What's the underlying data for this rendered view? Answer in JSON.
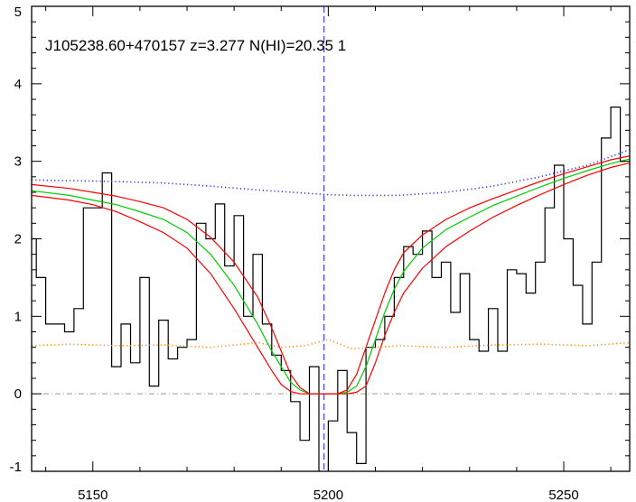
{
  "chart_data": {
    "type": "line",
    "title": "J105238.60+470157 z=3.277 N(HI)=20.35 1",
    "xlabel": "",
    "ylabel": "",
    "xlim": [
      5137,
      5264
    ],
    "ylim": [
      -1,
      5
    ],
    "x_ticks": [
      5150,
      5200,
      5250
    ],
    "x_tick_labels": [
      "5150",
      "5200",
      "5250"
    ],
    "y_ticks": [
      -1,
      0,
      1,
      2,
      3,
      4,
      5
    ],
    "y_tick_labels": [
      "-1",
      "0",
      "1",
      "2",
      "3",
      "4",
      "5"
    ],
    "grid": false,
    "legend": "none",
    "reference_x": 5199.1,
    "reference_y": 0,
    "series": [
      {
        "style": "steps",
        "color": "#000000",
        "x": [
          5137,
          5139,
          5141,
          5143,
          5145,
          5147,
          5149,
          5151,
          5153,
          5155,
          5157,
          5159,
          5161,
          5163,
          5165,
          5167,
          5169,
          5171,
          5173,
          5175,
          5177,
          5179,
          5181,
          5183,
          5185,
          5187,
          5189,
          5191,
          5193,
          5195,
          5197,
          5199,
          5201,
          5203,
          5205,
          5207,
          5209,
          5211,
          5213,
          5215,
          5217,
          5219,
          5221,
          5223,
          5225,
          5227,
          5229,
          5231,
          5233,
          5235,
          5237,
          5239,
          5241,
          5243,
          5245,
          5247,
          5249,
          5251,
          5253,
          5255,
          5257,
          5259,
          5261,
          5263
        ],
        "y": [
          2.0,
          1.5,
          0.9,
          0.9,
          0.8,
          1.1,
          2.4,
          2.4,
          2.85,
          0.35,
          0.9,
          0.4,
          1.5,
          0.1,
          0.95,
          0.45,
          0.6,
          0.7,
          2.2,
          2.0,
          2.45,
          1.65,
          2.3,
          1.0,
          1.8,
          0.9,
          0.5,
          0.3,
          -0.1,
          -0.6,
          0.35,
          -1.1,
          -0.35,
          0.3,
          -0.5,
          -0.9,
          0.6,
          0.7,
          1.0,
          1.5,
          1.9,
          1.8,
          2.1,
          1.5,
          1.7,
          1.05,
          1.55,
          0.7,
          0.55,
          1.1,
          0.55,
          1.6,
          1.55,
          1.3,
          1.7,
          2.4,
          2.95,
          2.0,
          1.4,
          0.9,
          1.7,
          3.3,
          3.7,
          3.0
        ]
      },
      {
        "style": "line",
        "color": "#00cc00",
        "x": [
          5137,
          5145,
          5150,
          5155,
          5160,
          5165,
          5170,
          5175,
          5180,
          5185,
          5188,
          5190,
          5192,
          5194,
          5196,
          5198,
          5200,
          5202,
          5204,
          5206,
          5208,
          5210,
          5212,
          5214,
          5216,
          5220,
          5225,
          5230,
          5235,
          5240,
          5245,
          5250,
          5255,
          5260,
          5264
        ],
        "y": [
          2.62,
          2.56,
          2.5,
          2.44,
          2.35,
          2.25,
          2.08,
          1.8,
          1.4,
          0.9,
          0.55,
          0.35,
          0.15,
          0.05,
          0.0,
          0.0,
          0.0,
          0.0,
          0.02,
          0.1,
          0.35,
          0.7,
          1.05,
          1.35,
          1.58,
          1.88,
          2.12,
          2.28,
          2.43,
          2.55,
          2.67,
          2.78,
          2.88,
          2.97,
          3.03
        ]
      },
      {
        "style": "line",
        "color": "#ff0000",
        "x": [
          5137,
          5145,
          5150,
          5155,
          5160,
          5165,
          5170,
          5175,
          5180,
          5185,
          5188,
          5190,
          5192,
          5194,
          5196,
          5198,
          5200,
          5202,
          5204,
          5206,
          5208,
          5210,
          5212,
          5214,
          5216,
          5220,
          5225,
          5230,
          5235,
          5240,
          5245,
          5250,
          5255,
          5260,
          5264
        ],
        "y": [
          2.7,
          2.65,
          2.6,
          2.55,
          2.48,
          2.4,
          2.25,
          2.02,
          1.7,
          1.25,
          0.85,
          0.55,
          0.25,
          0.08,
          0.0,
          0.0,
          0.0,
          0.0,
          0.05,
          0.25,
          0.6,
          0.95,
          1.3,
          1.6,
          1.82,
          2.05,
          2.25,
          2.4,
          2.52,
          2.63,
          2.74,
          2.84,
          2.93,
          3.02,
          3.07
        ]
      },
      {
        "style": "line",
        "color": "#ff0000",
        "x": [
          5137,
          5145,
          5150,
          5155,
          5160,
          5165,
          5170,
          5175,
          5180,
          5185,
          5188,
          5190,
          5192,
          5194,
          5196,
          5198,
          5200,
          5202,
          5204,
          5206,
          5208,
          5210,
          5212,
          5214,
          5216,
          5220,
          5225,
          5230,
          5235,
          5240,
          5245,
          5250,
          5255,
          5260,
          5264
        ],
        "y": [
          2.56,
          2.5,
          2.44,
          2.35,
          2.22,
          2.08,
          1.88,
          1.55,
          1.1,
          0.6,
          0.3,
          0.12,
          0.03,
          0.0,
          0.0,
          0.0,
          0.0,
          0.0,
          0.0,
          0.02,
          0.1,
          0.4,
          0.75,
          1.05,
          1.3,
          1.62,
          1.9,
          2.1,
          2.28,
          2.43,
          2.57,
          2.7,
          2.82,
          2.92,
          2.98
        ]
      },
      {
        "style": "dotted",
        "color": "#3333ff",
        "x": [
          5137,
          5145,
          5155,
          5165,
          5175,
          5185,
          5195,
          5200,
          5205,
          5215,
          5225,
          5235,
          5245,
          5255,
          5264
        ],
        "y": [
          2.76,
          2.75,
          2.74,
          2.72,
          2.68,
          2.63,
          2.59,
          2.57,
          2.56,
          2.56,
          2.6,
          2.68,
          2.8,
          2.95,
          3.15
        ]
      },
      {
        "style": "dotted",
        "color": "#ff8c00",
        "x": [
          5137,
          5145,
          5155,
          5165,
          5175,
          5185,
          5190,
          5195,
          5200,
          5205,
          5210,
          5215,
          5225,
          5235,
          5245,
          5255,
          5264
        ],
        "y": [
          0.62,
          0.64,
          0.62,
          0.63,
          0.6,
          0.66,
          0.6,
          0.62,
          0.7,
          0.58,
          0.6,
          0.62,
          0.6,
          0.63,
          0.64,
          0.62,
          0.66
        ]
      }
    ]
  }
}
